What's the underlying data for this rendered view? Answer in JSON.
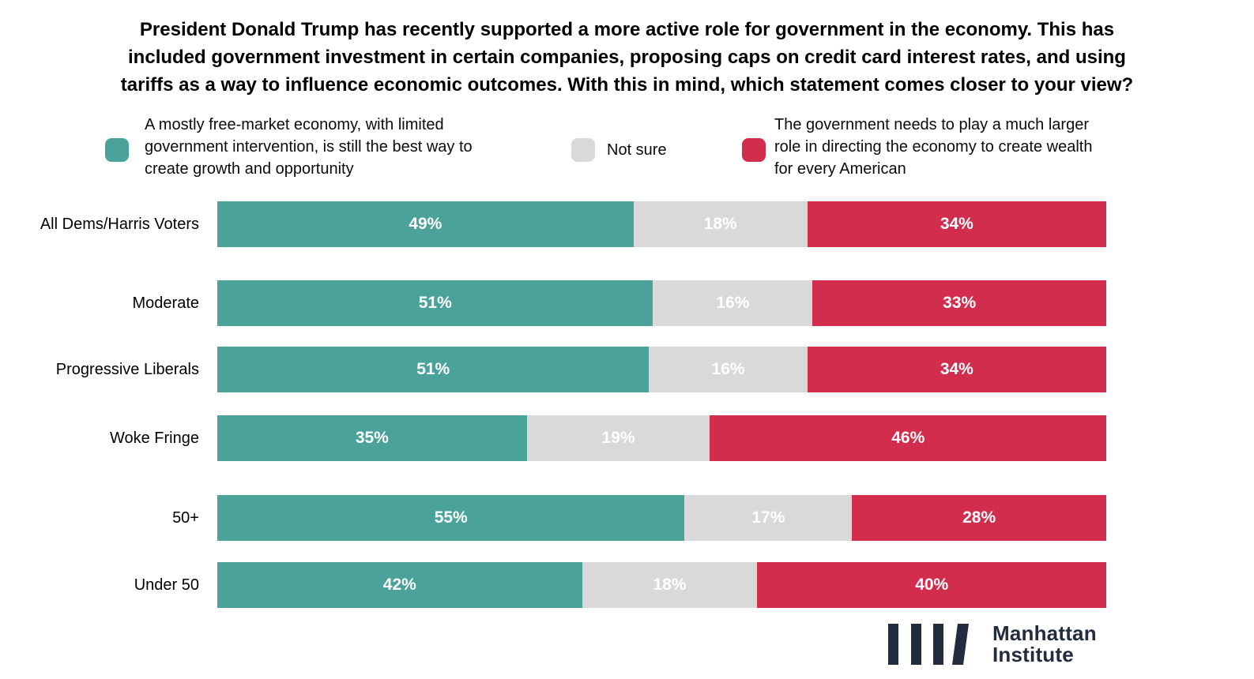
{
  "title": {
    "full_text": "President Donald Trump has recently supported a more active role for government in the economy. This has included government investment in certain companies, proposing caps on credit card interest rates, and using tariffs as a way to influence economic outcomes. With this in mind, which statement comes closer to your view?",
    "lines": [
      "President Donald Trump has recently supported a more active role for government in the economy. This has",
      "included government investment in certain companies, proposing caps on credit card interest rates, and using",
      "tariffs as a way to influence economic outcomes. With this in mind, which statement comes closer to your view?"
    ]
  },
  "legend": {
    "free_market": {
      "color": "#4AA29B",
      "lines": [
        "A mostly free-market economy, with limited",
        "government intervention, is still the best way to",
        "create growth and opportunity"
      ]
    },
    "not_sure": {
      "color": "#D9D9D9",
      "lines": [
        "Not sure"
      ]
    },
    "government_role": {
      "color": "#D22D4D",
      "lines": [
        "The government needs to play a much larger",
        "role in directing the economy to create wealth",
        "for every American"
      ]
    }
  },
  "chart_data": {
    "type": "bar",
    "orientation": "horizontal",
    "stacked": true,
    "unit": "%",
    "value_label_suffix": "%",
    "value_label_color": "#ffffff",
    "legend_position": "top",
    "grid": false,
    "categories": [
      "All Dems/Harris Voters",
      "Moderate",
      "Progressive Liberals",
      "Woke Fringe",
      "50+",
      "Under 50"
    ],
    "series": [
      {
        "name": "A mostly free-market economy, with limited government intervention, is still the best way to create growth and opportunity",
        "color": "#4AA29B",
        "values": [
          49,
          51,
          51,
          35,
          55,
          42
        ]
      },
      {
        "name": "Not sure",
        "color": "#D9D9D9",
        "values": [
          18,
          16,
          16,
          19,
          17,
          18
        ]
      },
      {
        "name": "The government needs to play a much larger role in directing the economy to create wealth for every American",
        "color": "#D22D4D",
        "values": [
          34,
          33,
          34,
          46,
          28,
          40
        ]
      }
    ]
  },
  "branding": {
    "name_lines": [
      "Manhattan",
      "Institute"
    ],
    "logo_color": "#232B3E"
  }
}
